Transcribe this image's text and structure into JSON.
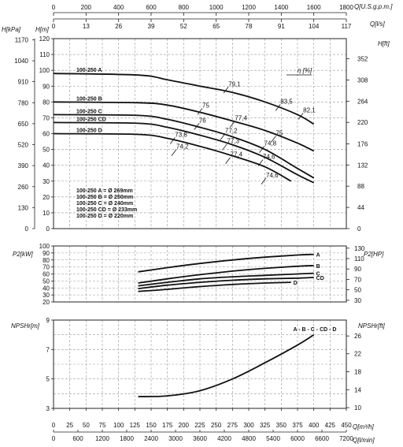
{
  "chart_data": [
    {
      "type": "line",
      "panel": "head",
      "top_axes": [
        {
          "label": "Q[U.S.g.p.m.]",
          "ticks": [
            "0",
            "200",
            "400",
            "600",
            "800",
            "1000",
            "1200",
            "1400",
            "1600",
            "1800"
          ],
          "values": [
            0,
            200,
            400,
            600,
            800,
            1000,
            1200,
            1400,
            1600,
            1800
          ]
        },
        {
          "label": "Q[l/s]",
          "ticks": [
            "0",
            "13",
            "26",
            "39",
            "52",
            "65",
            "78",
            "91",
            "104",
            "117"
          ],
          "values": [
            0,
            13,
            26,
            39,
            52,
            65,
            78,
            91,
            104,
            117
          ]
        }
      ],
      "y_left_labels": [
        "H[kPa]",
        "H[m]"
      ],
      "y_right_label": "H[ft]",
      "efficiency_label": "η [%]",
      "ylim": [
        0,
        120
      ],
      "y_ticks_m": [
        "0",
        "10",
        "20",
        "30",
        "40",
        "50",
        "60",
        "70",
        "80",
        "90",
        "100",
        "110",
        "120"
      ],
      "y_ticks_kpa": [
        {
          "label": "0",
          "m": 0
        },
        {
          "label": "130",
          "m": 13.3
        },
        {
          "label": "260",
          "m": 26.5
        },
        {
          "label": "390",
          "m": 39.8
        },
        {
          "label": "520",
          "m": 53.0
        },
        {
          "label": "650",
          "m": 66.3
        },
        {
          "label": "780",
          "m": 79.5
        },
        {
          "label": "910",
          "m": 92.8
        },
        {
          "label": "1040",
          "m": 106.0
        },
        {
          "label": "1170",
          "m": 119.3
        }
      ],
      "y_ticks_ft": [
        {
          "label": "0",
          "m": 0
        },
        {
          "label": "44",
          "m": 13.4
        },
        {
          "label": "88",
          "m": 26.8
        },
        {
          "label": "132",
          "m": 40.2
        },
        {
          "label": "176",
          "m": 53.6
        },
        {
          "label": "220",
          "m": 67.1
        },
        {
          "label": "264",
          "m": 80.5
        },
        {
          "label": "308",
          "m": 93.9
        },
        {
          "label": "352",
          "m": 107.3
        }
      ],
      "series": [
        {
          "name": "100-250 A",
          "x": [
            0,
            130,
            175,
            225,
            275,
            325,
            375,
            400
          ],
          "y": [
            98,
            97,
            94,
            90,
            86,
            80,
            72,
            66
          ]
        },
        {
          "name": "100-250 B",
          "x": [
            0,
            130,
            175,
            225,
            275,
            325,
            375,
            400
          ],
          "y": [
            80,
            79.5,
            78,
            73.5,
            68,
            62,
            54,
            49
          ]
        },
        {
          "name": "100-250 C",
          "x": [
            0,
            130,
            175,
            225,
            275,
            325,
            375,
            400
          ],
          "y": [
            72,
            71.5,
            69,
            64,
            58,
            50,
            38,
            32
          ]
        },
        {
          "name": "100-250 CD",
          "x": [
            0,
            130,
            175,
            225,
            275,
            325,
            375,
            400
          ],
          "y": [
            67,
            66.5,
            64,
            59,
            53,
            45,
            34,
            29
          ]
        },
        {
          "name": "100-250 D",
          "x": [
            0,
            130,
            175,
            225,
            275,
            325,
            365
          ],
          "y": [
            60,
            59.5,
            57,
            52,
            46,
            39,
            30
          ]
        }
      ],
      "efficiency_points": [
        {
          "label": "79,1",
          "x": 265,
          "y": 87.5
        },
        {
          "label": "83,5",
          "x": 345,
          "y": 76.5
        },
        {
          "label": "82,1",
          "x": 380,
          "y": 71
        },
        {
          "label": "75",
          "x": 225,
          "y": 74
        },
        {
          "label": "77,4",
          "x": 275,
          "y": 66
        },
        {
          "label": "76",
          "x": 220,
          "y": 64.5
        },
        {
          "label": "77,2",
          "x": 260,
          "y": 58
        },
        {
          "label": "75",
          "x": 338,
          "y": 56.5
        },
        {
          "label": "73,8",
          "x": 183,
          "y": 55.5
        },
        {
          "label": "77,3",
          "x": 263,
          "y": 51.5
        },
        {
          "label": "74,8",
          "x": 320,
          "y": 50
        },
        {
          "label": "74,2",
          "x": 185,
          "y": 48
        },
        {
          "label": "77,4",
          "x": 268,
          "y": 43
        },
        {
          "label": "74,6",
          "x": 318,
          "y": 41.5
        },
        {
          "label": "74,6",
          "x": 323,
          "y": 30
        }
      ],
      "legend_lines": [
        "100-250 A = Ø 269mm",
        "100-250 B = Ø 250mm",
        "100-250 C = Ø 240mm",
        "100-250 CD = Ø 233mm",
        "100-250 D = Ø 220mm"
      ],
      "grid": true
    },
    {
      "type": "line",
      "panel": "power",
      "y_left_label": "P2[kW]",
      "y_right_label": "P2[HP]",
      "ylim": [
        20,
        100
      ],
      "y_ticks": [
        "20",
        "30",
        "40",
        "50",
        "60",
        "70",
        "80",
        "90",
        "100"
      ],
      "y_ticks_hp": [
        {
          "label": "30",
          "kw": 22.4
        },
        {
          "label": "50",
          "kw": 37.3
        },
        {
          "label": "70",
          "kw": 52.2
        },
        {
          "label": "90",
          "kw": 67.1
        },
        {
          "label": "110",
          "kw": 82.0
        },
        {
          "label": "130",
          "kw": 96.9
        }
      ],
      "series": [
        {
          "name": "A",
          "x": [
            130,
            175,
            225,
            275,
            325,
            375,
            400
          ],
          "y": [
            63,
            69,
            75,
            80,
            84,
            87,
            88
          ]
        },
        {
          "name": "B",
          "x": [
            130,
            175,
            225,
            275,
            325,
            375,
            400
          ],
          "y": [
            47,
            53,
            59,
            64,
            68,
            71,
            72
          ]
        },
        {
          "name": "C",
          "x": [
            130,
            175,
            225,
            275,
            325,
            375,
            400
          ],
          "y": [
            43,
            48,
            53,
            56,
            58,
            60,
            61
          ]
        },
        {
          "name": "CD",
          "x": [
            130,
            175,
            225,
            275,
            325,
            375,
            400
          ],
          "y": [
            39,
            44,
            48,
            51,
            53,
            54,
            55
          ]
        },
        {
          "name": "D",
          "x": [
            130,
            175,
            225,
            275,
            325,
            365
          ],
          "y": [
            35,
            38,
            42,
            45,
            47,
            48
          ]
        }
      ],
      "grid": true
    },
    {
      "type": "line",
      "panel": "npsh",
      "y_left_label": "NPSHr[m]",
      "y_right_label": "NPSHr[ft]",
      "ylim": [
        3,
        9
      ],
      "y_ticks": [
        "3",
        "5",
        "7",
        "9"
      ],
      "y_ticks_ft": [
        {
          "label": "10",
          "m": 3.05
        },
        {
          "label": "14",
          "m": 4.27
        },
        {
          "label": "18",
          "m": 5.49
        },
        {
          "label": "22",
          "m": 6.71
        },
        {
          "label": "26",
          "m": 7.92
        }
      ],
      "series": [
        {
          "name": "A - B - C - CD - D",
          "x": [
            130,
            175,
            225,
            275,
            325,
            375,
            400
          ],
          "y": [
            3.8,
            3.85,
            4.2,
            5.0,
            6.1,
            7.3,
            8.0
          ]
        }
      ],
      "grid": true
    }
  ],
  "bottom_axes": [
    {
      "label": "Q[m³/h]",
      "ticks": [
        "0",
        "25",
        "50",
        "75",
        "100",
        "125",
        "150",
        "175",
        "200",
        "225",
        "250",
        "275",
        "300",
        "325",
        "350",
        "375",
        "400",
        "425",
        "450"
      ],
      "values": [
        0,
        25,
        50,
        75,
        100,
        125,
        150,
        175,
        200,
        225,
        250,
        275,
        300,
        325,
        350,
        375,
        400,
        425,
        450
      ]
    },
    {
      "label": "Q[l/min]",
      "ticks": [
        "0",
        "600",
        "1200",
        "1800",
        "2400",
        "3000",
        "3600",
        "4200",
        "4800",
        "5400",
        "6000",
        "6600",
        "7200"
      ],
      "values": [
        0,
        600,
        1200,
        1800,
        2400,
        3000,
        3600,
        4200,
        4800,
        5400,
        6000,
        6600,
        7200
      ]
    }
  ]
}
